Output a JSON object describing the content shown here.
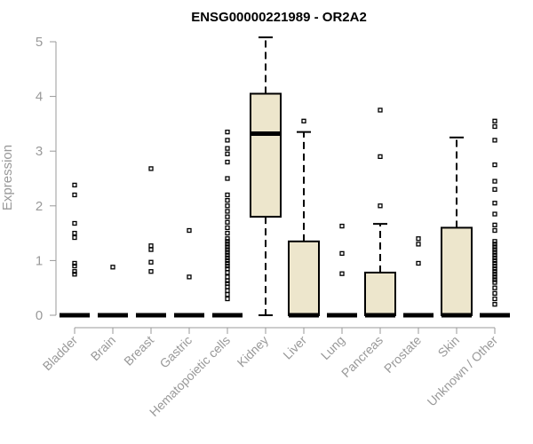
{
  "chart_data": {
    "type": "box",
    "title": "ENSG00000221989 - OR2A2",
    "ylabel": "Expression",
    "ylim": [
      0,
      5
    ],
    "yticks": [
      0,
      1,
      2,
      3,
      4,
      5
    ],
    "colors": {
      "box_fill": "#ede6cc",
      "axis": "#999999",
      "text_muted": "#999999",
      "ink": "#000000"
    },
    "categories": [
      "Bladder",
      "Brain",
      "Breast",
      "Gastric",
      "Hematopoietic cells",
      "Kidney",
      "Liver",
      "Lung",
      "Pancreas",
      "Prostate",
      "Skin",
      "Unknown / Other"
    ],
    "boxes": [
      {
        "category": "Bladder",
        "q1": 0,
        "median": 0,
        "q3": 0,
        "whisker_low": 0,
        "whisker_high": 0,
        "outliers": [
          0.75,
          0.8,
          0.9,
          0.95,
          1.42,
          1.5,
          1.68,
          2.2,
          2.38
        ]
      },
      {
        "category": "Brain",
        "q1": 0,
        "median": 0,
        "q3": 0,
        "whisker_low": 0,
        "whisker_high": 0,
        "outliers": [
          0.88
        ]
      },
      {
        "category": "Breast",
        "q1": 0,
        "median": 0,
        "q3": 0,
        "whisker_low": 0,
        "whisker_high": 0,
        "outliers": [
          0.8,
          0.97,
          1.2,
          1.27,
          2.68
        ]
      },
      {
        "category": "Gastric",
        "q1": 0,
        "median": 0,
        "q3": 0,
        "whisker_low": 0,
        "whisker_high": 0,
        "outliers": [
          0.7,
          1.55
        ]
      },
      {
        "category": "Hematopoietic cells",
        "q1": 0,
        "median": 0,
        "q3": 0,
        "whisker_low": 0,
        "whisker_high": 0,
        "outliers": [
          0.3,
          0.38,
          0.45,
          0.52,
          0.58,
          0.63,
          0.7,
          0.78,
          0.85,
          0.9,
          0.95,
          1.0,
          1.05,
          1.1,
          1.15,
          1.2,
          1.25,
          1.3,
          1.35,
          1.4,
          1.5,
          1.6,
          1.7,
          1.8,
          1.9,
          2.0,
          2.1,
          2.2,
          2.5,
          2.8,
          2.95,
          3.05,
          3.2,
          3.35
        ]
      },
      {
        "category": "Kidney",
        "q1": 1.8,
        "median": 3.32,
        "q3": 4.05,
        "whisker_low": 0,
        "whisker_high": 5.08,
        "outliers": []
      },
      {
        "category": "Liver",
        "q1": 0,
        "median": 0,
        "q3": 1.35,
        "whisker_low": 0,
        "whisker_high": 3.35,
        "outliers": [
          3.55
        ]
      },
      {
        "category": "Lung",
        "q1": 0,
        "median": 0,
        "q3": 0,
        "whisker_low": 0,
        "whisker_high": 0,
        "outliers": [
          0.76,
          1.13,
          1.63
        ]
      },
      {
        "category": "Pancreas",
        "q1": 0,
        "median": 0,
        "q3": 0.78,
        "whisker_low": 0,
        "whisker_high": 1.67,
        "outliers": [
          2.0,
          2.9,
          3.75
        ]
      },
      {
        "category": "Prostate",
        "q1": 0,
        "median": 0,
        "q3": 0,
        "whisker_low": 0,
        "whisker_high": 0,
        "outliers": [
          0.95,
          1.3,
          1.4
        ]
      },
      {
        "category": "Skin",
        "q1": 0,
        "median": 0,
        "q3": 1.6,
        "whisker_low": 0,
        "whisker_high": 3.25,
        "outliers": []
      },
      {
        "category": "Unknown / Other",
        "q1": 0,
        "median": 0,
        "q3": 0,
        "whisker_low": 0,
        "whisker_high": 0,
        "outliers": [
          0.2,
          0.3,
          0.4,
          0.5,
          0.6,
          0.65,
          0.7,
          0.75,
          0.8,
          0.85,
          0.9,
          0.95,
          1.0,
          1.05,
          1.1,
          1.15,
          1.2,
          1.25,
          1.3,
          1.35,
          1.55,
          1.65,
          1.85,
          2.05,
          2.3,
          2.45,
          2.75,
          3.2,
          3.45,
          3.55
        ]
      }
    ]
  }
}
